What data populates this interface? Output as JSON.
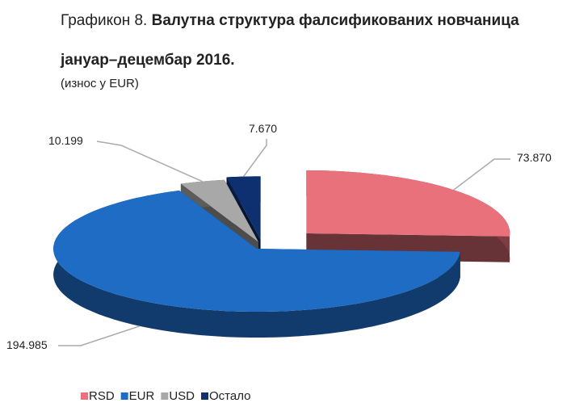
{
  "chart_data": {
    "type": "pie3d",
    "title": [
      "Графикон 8.",
      "Валутна структура фалсификованих новчаница",
      "јануар–децембар 2016."
    ],
    "subtitle": "(износ у EUR)",
    "categories": [
      "RSD",
      "EUR",
      "USD",
      "Остало"
    ],
    "values": [
      73870,
      194985,
      10199,
      7670
    ],
    "value_labels": [
      "73.870",
      "194.985",
      "10.199",
      "7.670"
    ],
    "colors": [
      "#e8717b",
      "#1f6cc4",
      "#a8a8a8",
      "#0e2f70"
    ],
    "legend": "bottom"
  }
}
